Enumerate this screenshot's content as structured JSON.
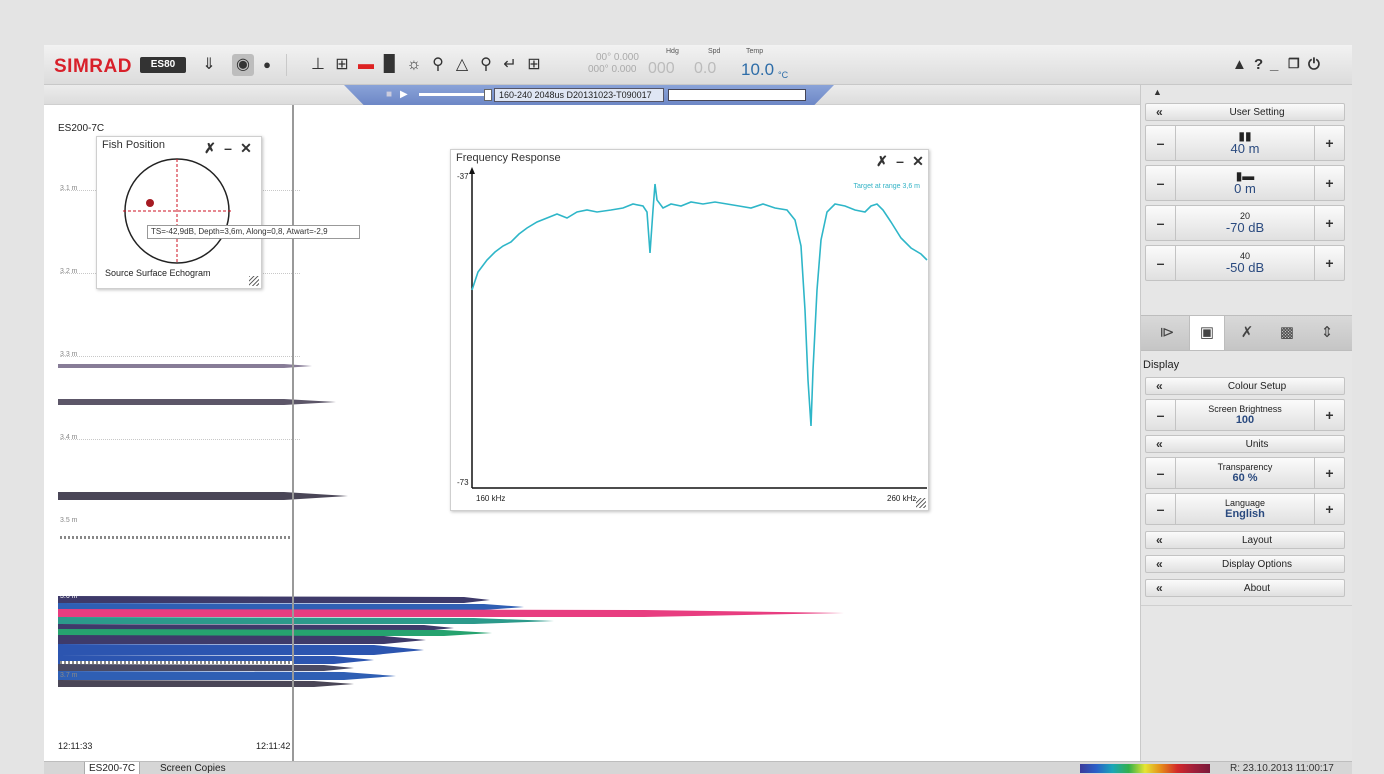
{
  "app": {
    "logo": "SIMRAD",
    "badge": "ES80",
    "nav": {
      "position_lat": "00° 0.000",
      "position_lon": "000° 0.000",
      "hdg_label": "Hdg",
      "hdg_value": "000",
      "spd_label": "Spd",
      "spd_value": "0.0",
      "temp_label": "Temp",
      "temp_value": "10.0",
      "temp_unit": "°C"
    }
  },
  "toolbar": {
    "icons": [
      "chevron-down-icon",
      "camera-icon",
      "record-icon",
      "depth-line-icon",
      "zoom-region-icon",
      "horizontal-line-icon",
      "histogram-icon",
      "compass-icon",
      "magnifier-icon",
      "color-icon",
      "zoom-in-icon",
      "pointer-icon",
      "grid-icon"
    ],
    "window_controls": [
      "warning-icon",
      "help-icon",
      "minimize-icon",
      "restore-icon",
      "power-icon"
    ]
  },
  "replay": {
    "file": "160-240 2048us D20131023-T090017"
  },
  "echogram": {
    "channel": "ES200-7C",
    "depths": [
      "3.1 m",
      "3.2 m",
      "3.3 m",
      "3.4 m",
      "3.5 m",
      "3.6 m",
      "3.7 m"
    ],
    "time_start": "12:11:33",
    "time_end": "12:11:42"
  },
  "fish_position": {
    "title": "Fish Position",
    "info": "TS=-42,9dB, Depth=3,6m, Along=0,8, Atwart=-2,9",
    "source": "Source Surface Echogram"
  },
  "frequency_response": {
    "title": "Frequency Response",
    "annotation": "Target at range 3,6 m",
    "y_max": "-37",
    "y_min": "-73",
    "x_min": "160 kHz",
    "x_max": "260 kHz"
  },
  "sidebar": {
    "user_setting": "User Setting",
    "range": {
      "value": "40 m"
    },
    "start_range": {
      "value": "0 m"
    },
    "tvg20": {
      "label": "20",
      "value": "-70 dB"
    },
    "tvg40": {
      "label": "40",
      "value": "-50 dB"
    },
    "tabs": [
      "operation-icon",
      "display-icon",
      "setup-icon",
      "active-icon",
      "expand-icon"
    ],
    "section": "Display",
    "colour_setup": "Colour Setup",
    "screen_brightness": {
      "label": "Screen Brightness",
      "value": "100"
    },
    "units": "Units",
    "transparency": {
      "label": "Transparency",
      "value": "60 %"
    },
    "language": {
      "label": "Language",
      "value": "English"
    },
    "layout": "Layout",
    "display_options": "Display Options",
    "about": "About"
  },
  "status": {
    "tab1": "ES200-7C",
    "tab2": "Screen Copies",
    "datetime": "R: 23.10.2013  11:00:17"
  }
}
